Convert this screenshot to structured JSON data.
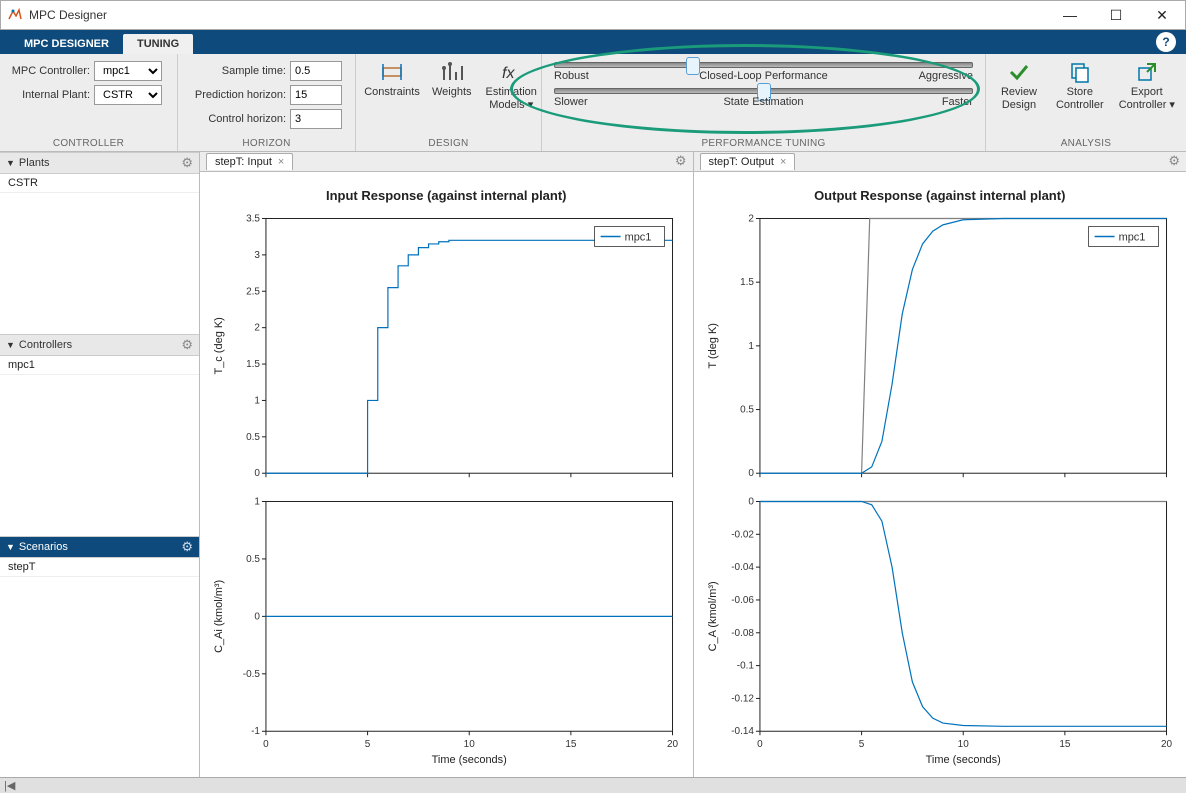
{
  "window": {
    "title": "MPC Designer"
  },
  "tabs": {
    "designer": "MPC DESIGNER",
    "tuning": "TUNING"
  },
  "controller_section": {
    "label": "CONTROLLER",
    "mpc_label": "MPC Controller:",
    "mpc_value": "mpc1",
    "plant_label": "Internal Plant:",
    "plant_value": "CSTR"
  },
  "horizon_section": {
    "label": "HORIZON",
    "sample_label": "Sample time:",
    "sample_value": "0.5",
    "pred_label": "Prediction horizon:",
    "pred_value": "15",
    "ctrl_label": "Control horizon:",
    "ctrl_value": "3"
  },
  "design_section": {
    "label": "DESIGN",
    "constraints": "Constraints",
    "weights": "Weights",
    "est_models": "Estimation Models ▾"
  },
  "tuning_section": {
    "label": "PERFORMANCE TUNING",
    "slider1": {
      "left": "Robust",
      "mid": "Closed-Loop Performance",
      "right": "Aggressive",
      "pos_pct": 33
    },
    "slider2": {
      "left": "Slower",
      "mid": "State Estimation",
      "right": "Faster",
      "pos_pct": 50
    }
  },
  "analysis_section": {
    "label": "ANALYSIS",
    "review": "Review Design",
    "store": "Store Controller",
    "export": "Export Controller ▾"
  },
  "side": {
    "plants": {
      "title": "Plants",
      "items": [
        "CSTR"
      ]
    },
    "controllers": {
      "title": "Controllers",
      "items": [
        "mpc1"
      ]
    },
    "scenarios": {
      "title": "Scenarios",
      "items": [
        "stepT"
      ]
    }
  },
  "docs": {
    "input": {
      "tab": "stepT: Input",
      "title": "Input Response (against internal plant)"
    },
    "output": {
      "tab": "stepT: Output",
      "title": "Output Response (against internal plant)"
    }
  },
  "legend": {
    "label": "mpc1",
    "color": "#0072bd"
  },
  "colors": {
    "series": "#0072bd",
    "ref": "#808080",
    "axes_bg": "#ffffff",
    "plot_border": "#222222"
  },
  "x_axis": {
    "label": "Time (seconds)",
    "min": 0,
    "max": 20,
    "ticks": [
      0,
      5,
      10,
      15,
      20
    ]
  },
  "plot_Tc": {
    "ylabel": "T_c (deg K)",
    "ymin": 0,
    "ymax": 3.5,
    "yticks": [
      0,
      0.5,
      1,
      1.5,
      2,
      2.5,
      3,
      3.5
    ],
    "series": [
      [
        0,
        0
      ],
      [
        5,
        0
      ],
      [
        5,
        1
      ],
      [
        5.5,
        1
      ],
      [
        5.5,
        2
      ],
      [
        6,
        2
      ],
      [
        6,
        2.55
      ],
      [
        6.5,
        2.55
      ],
      [
        6.5,
        2.85
      ],
      [
        7,
        2.85
      ],
      [
        7,
        3.0
      ],
      [
        7.5,
        3.0
      ],
      [
        7.5,
        3.1
      ],
      [
        8,
        3.1
      ],
      [
        8,
        3.15
      ],
      [
        8.5,
        3.15
      ],
      [
        8.5,
        3.18
      ],
      [
        9,
        3.18
      ],
      [
        9,
        3.2
      ],
      [
        10,
        3.2
      ],
      [
        20,
        3.2
      ]
    ]
  },
  "plot_CAi": {
    "ylabel": "C_Ai (kmol/m³)",
    "ymin": -1,
    "ymax": 1,
    "yticks": [
      -1,
      -0.5,
      0,
      0.5,
      1
    ],
    "series": [
      [
        0,
        0
      ],
      [
        20,
        0
      ]
    ]
  },
  "plot_T": {
    "ylabel": "T (deg K)",
    "ymin": 0,
    "ymax": 2,
    "yticks": [
      0,
      0.5,
      1,
      1.5,
      2
    ],
    "ref": [
      [
        5,
        0
      ],
      [
        5.4,
        2
      ],
      [
        20,
        2
      ]
    ],
    "series": [
      [
        0,
        0
      ],
      [
        5,
        0
      ],
      [
        5.5,
        0.05
      ],
      [
        6,
        0.25
      ],
      [
        6.5,
        0.7
      ],
      [
        7,
        1.25
      ],
      [
        7.5,
        1.6
      ],
      [
        8,
        1.8
      ],
      [
        8.5,
        1.9
      ],
      [
        9,
        1.95
      ],
      [
        10,
        1.99
      ],
      [
        12,
        2
      ],
      [
        20,
        2
      ]
    ]
  },
  "plot_CA": {
    "ylabel": "C_A (kmol/m³)",
    "ymin": -0.14,
    "ymax": 0,
    "yticks": [
      -0.14,
      -0.12,
      -0.1,
      -0.08,
      -0.06,
      -0.04,
      -0.02,
      0
    ],
    "ref": [
      [
        0,
        0
      ],
      [
        20,
        0
      ]
    ],
    "series": [
      [
        0,
        0
      ],
      [
        5,
        0
      ],
      [
        5.5,
        -0.002
      ],
      [
        6,
        -0.012
      ],
      [
        6.5,
        -0.04
      ],
      [
        7,
        -0.08
      ],
      [
        7.5,
        -0.11
      ],
      [
        8,
        -0.125
      ],
      [
        8.5,
        -0.132
      ],
      [
        9,
        -0.135
      ],
      [
        10,
        -0.1365
      ],
      [
        12,
        -0.137
      ],
      [
        20,
        -0.137
      ]
    ]
  }
}
